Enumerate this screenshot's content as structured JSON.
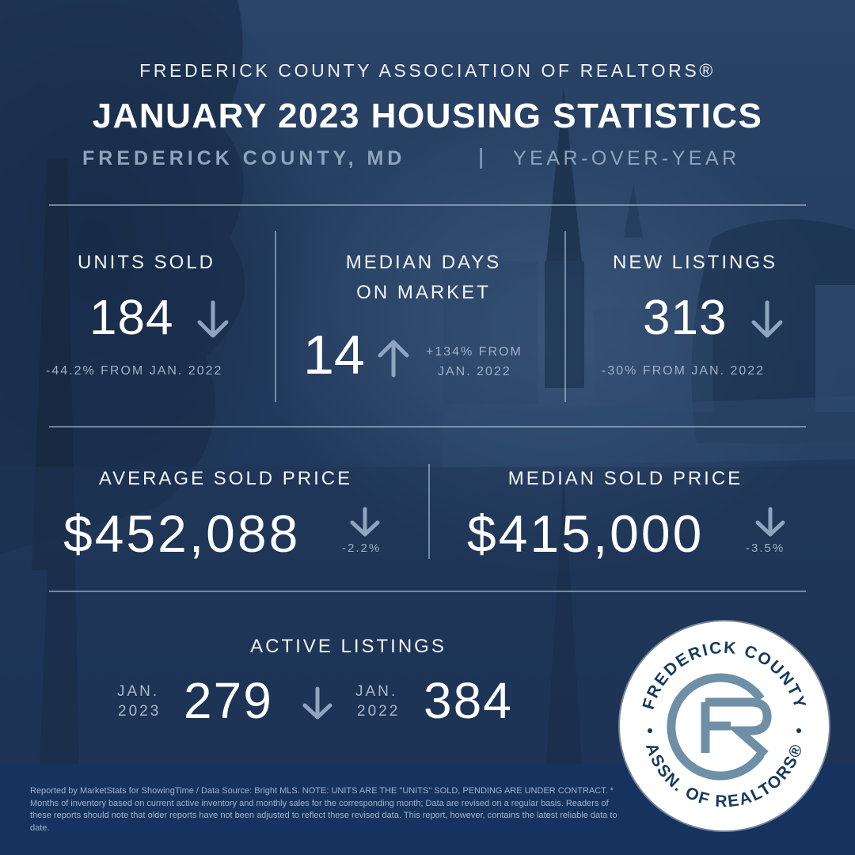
{
  "header": {
    "organization": "FREDERICK COUNTY ASSOCIATION OF REALTORS®",
    "title": "JANUARY 2023 HOUSING STATISTICS",
    "region": "FREDERICK COUNTY, MD",
    "separator": "|",
    "comparison": "YEAR-OVER-YEAR"
  },
  "stats": {
    "units_sold": {
      "label": "UNITS SOLD",
      "value": "184",
      "trend": "down",
      "change": "-44.2% FROM JAN. 2022"
    },
    "median_days": {
      "label_line1": "MEDIAN DAYS",
      "label_line2": "ON MARKET",
      "value": "14",
      "trend": "up",
      "change_line1": "+134% FROM",
      "change_line2": "JAN. 2022"
    },
    "new_listings": {
      "label": "NEW LISTINGS",
      "value": "313",
      "trend": "down",
      "change": "-30% FROM JAN. 2022"
    },
    "average_sold_price": {
      "label": "AVERAGE SOLD PRICE",
      "value": "$452,088",
      "trend": "down",
      "change": "-2.2%"
    },
    "median_sold_price": {
      "label": "MEDIAN SOLD PRICE",
      "value": "$415,000",
      "trend": "down",
      "change": "-3.5%"
    },
    "active_listings": {
      "label": "ACTIVE LISTINGS",
      "current_month": "JAN.",
      "current_year": "2023",
      "current_value": "279",
      "trend": "down",
      "prior_month": "JAN.",
      "prior_year": "2022",
      "prior_value": "384"
    }
  },
  "logo": {
    "top_text": "FREDERICK COUNTY",
    "bottom_text": "ASSN. OF REALTORS®",
    "monogram": "FCR"
  },
  "footer": {
    "text": "Reported by MarketStats for ShowingTime / Data Source: Bright MLS. NOTE: UNITS ARE THE \"UNITS\" SOLD, PENDING ARE UNDER CONTRACT. * Months of inventory based on current active inventory and monthly sales for the corresponding month; Data are revised on a regular basis. Readers of these reports should note that older reports have not been adjusted to reflect these revised data. This report, however, contains the latest reliable data to date."
  },
  "colors": {
    "background": "#233c5f",
    "accent_muted": "#8fa4bd",
    "arrow": "#8ea4bf",
    "footer_bar": "#16335f",
    "logo_teal": "#6f8fa6"
  }
}
